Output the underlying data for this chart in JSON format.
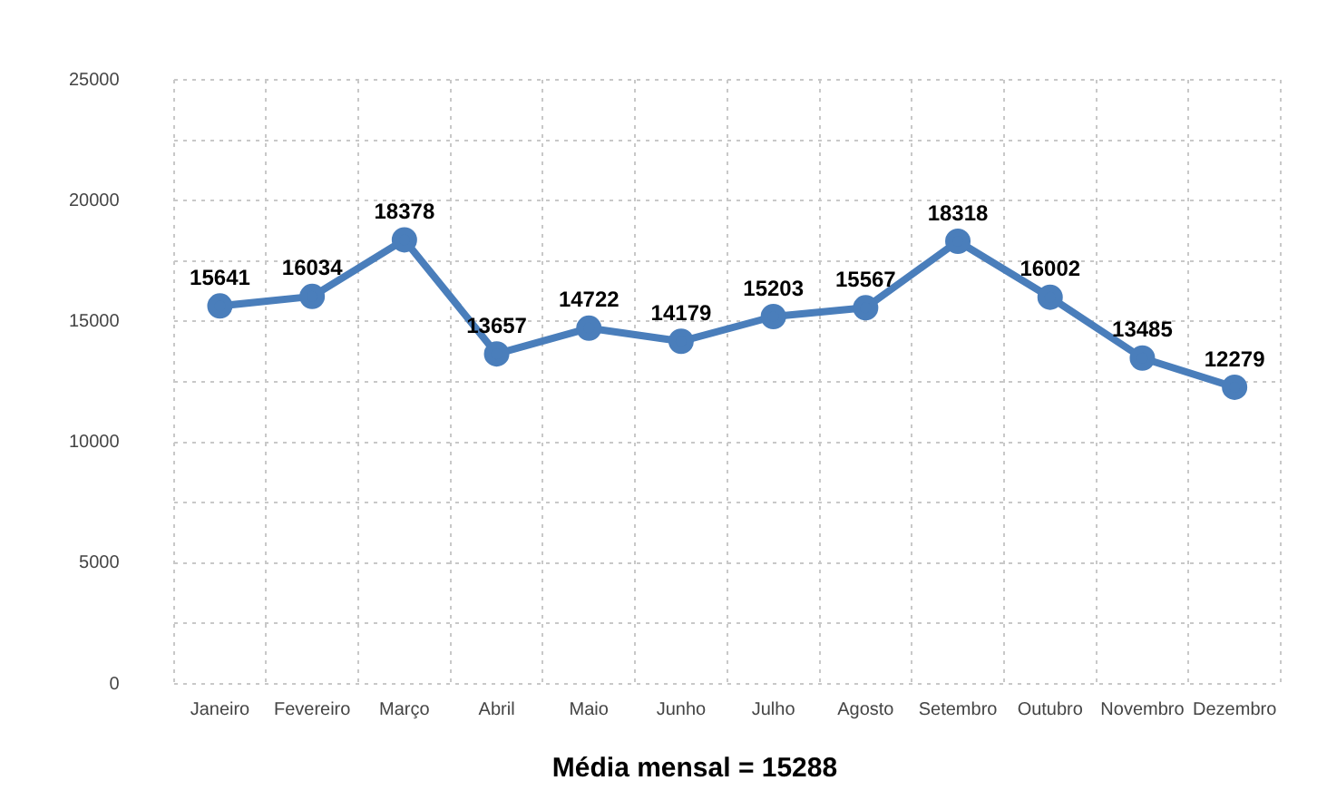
{
  "chart_data": {
    "type": "line",
    "categories": [
      "Janeiro",
      "Fevereiro",
      "Março",
      "Abril",
      "Maio",
      "Junho",
      "Julho",
      "Agosto",
      "Setembro",
      "Outubro",
      "Novembro",
      "Dezembro"
    ],
    "series": [
      {
        "color": "#4a7ebb",
        "values": [
          15641,
          16034,
          18378,
          13657,
          14722,
          14179,
          15203,
          15567,
          18318,
          16002,
          13485,
          12279
        ]
      }
    ],
    "ylim": [
      0,
      25000
    ],
    "yticks": [
      0,
      {
        "value": 2500,
        "label": null
      },
      5000,
      {
        "value": 7500,
        "label": null
      },
      10000,
      {
        "value": 12500,
        "label": null
      },
      15000,
      {
        "value": 17500,
        "label": null
      },
      20000,
      {
        "value": 22500,
        "label": null
      },
      25000
    ],
    "grid": true,
    "marker": "circle",
    "line_style": "solid",
    "data_labels": true,
    "legend": false,
    "annotations": [
      "Média mensal = 15288"
    ]
  }
}
